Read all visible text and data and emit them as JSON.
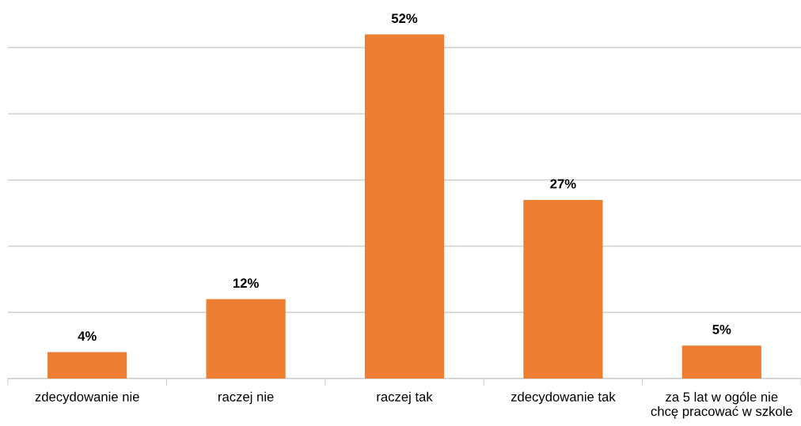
{
  "chart_data": {
    "type": "bar",
    "categories": [
      "zdecydowanie nie",
      "raczej nie",
      "raczej tak",
      "zdecydowanie tak",
      "za 5 lat w ogóle nie\nchcę pracować w szkole"
    ],
    "values": [
      4,
      12,
      52,
      27,
      5
    ],
    "value_labels": [
      "4%",
      "12%",
      "52%",
      "27%",
      "5%"
    ],
    "color": "#ed7d31",
    "yticks": [
      {
        "value": 0,
        "label": null
      },
      {
        "value": 10,
        "label": null
      },
      {
        "value": 20,
        "label": null
      },
      {
        "value": 30,
        "label": null
      },
      {
        "value": 40,
        "label": null
      },
      {
        "value": 50,
        "label": null
      }
    ],
    "grid": "y",
    "legend": false
  }
}
